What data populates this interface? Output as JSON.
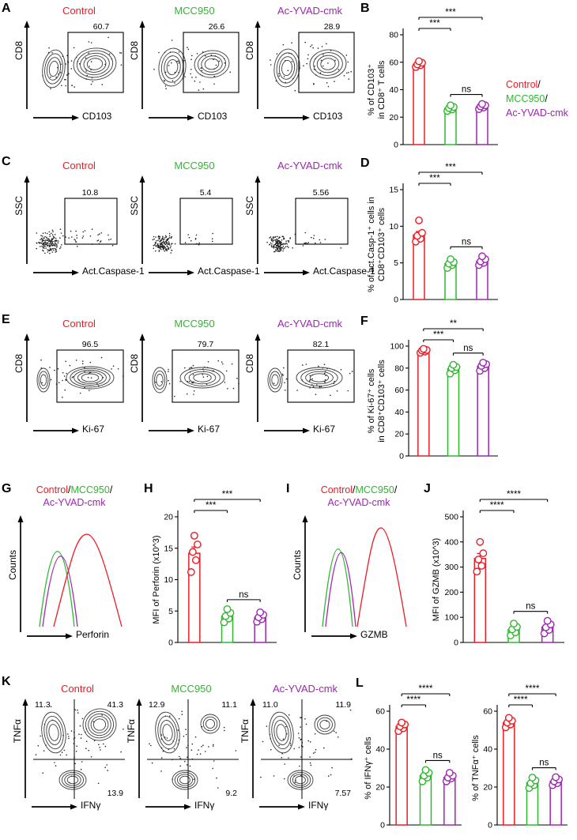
{
  "slash": "/",
  "colors": {
    "control": "#ee1b24",
    "mcc950": "#2eb82e",
    "acyvad": "#9c27b0",
    "contour": "#3c3c3c",
    "axis": "#000000"
  },
  "group_labels": [
    "Control",
    "MCC950",
    "Ac-YVAD-cmk"
  ],
  "panel_a": {
    "label": "A",
    "titles": [
      "Control",
      "MCC950",
      "Ac-YVAD-cmk"
    ],
    "gate_values": [
      "60.7",
      "26.6",
      "28.9"
    ],
    "ylabel": "CD8",
    "xlabel": "CD103"
  },
  "panel_b_legend": [
    "Control",
    "MCC950",
    "Ac-YVAD-cmk"
  ],
  "panel_c": {
    "label": "C",
    "titles": [
      "Control",
      "MCC950",
      "Ac-YVAD-cmk"
    ],
    "gate_values": [
      "10.8",
      "5.4",
      "5.56"
    ],
    "ylabel": "SSC",
    "xlabel": "Act.Caspase-1"
  },
  "panel_e": {
    "label": "E",
    "titles": [
      "Control",
      "MCC950",
      "Ac-YVAD-cmk"
    ],
    "gate_values": [
      "96.5",
      "79.7",
      "82.1"
    ],
    "ylabel": "CD8",
    "xlabel": "Ki-67"
  },
  "panel_g": {
    "label": "G",
    "legend": [
      "Control",
      "MCC950",
      "Ac-YVAD-cmk"
    ],
    "ylabel": "Counts",
    "xlabel": "Perforin"
  },
  "panel_i": {
    "label": "I",
    "legend": [
      "Control",
      "MCC950",
      "Ac-YVAD-cmk"
    ],
    "ylabel": "Counts",
    "xlabel": "GZMB"
  },
  "panel_k": {
    "label": "K",
    "titles": [
      "Control",
      "MCC950",
      "Ac-YVAD-cmk"
    ],
    "quadrants": [
      {
        "tl": "11.3",
        "tr": "41.3",
        "br": "13.9"
      },
      {
        "tl": "12.9",
        "tr": "11.1",
        "br": "9.2"
      },
      {
        "tl": "11.0",
        "tr": "11.9",
        "br": "7.57"
      }
    ],
    "ylabel": "TNFα",
    "xlabel": "IFNγ"
  },
  "chart_data": [
    {
      "panel": "B",
      "type": "bar-scatter",
      "ylabel_lines": [
        "% of CD103⁺",
        "in CD8⁺ T cells"
      ],
      "ylim": [
        0,
        80
      ],
      "yticks": [
        0,
        20,
        40,
        60,
        80
      ],
      "categories": [
        "Control",
        "MCC950",
        "Ac-YVAD-cmk"
      ],
      "series": [
        {
          "name": "Control",
          "color": "control",
          "mean": 58.6,
          "sem": 1.5,
          "points": [
            56.5,
            57.8,
            58.4,
            59.6,
            60.7
          ]
        },
        {
          "name": "MCC950",
          "color": "mcc950",
          "mean": 26.6,
          "sem": 1.2,
          "points": [
            24.5,
            25.6,
            26.6,
            27.4,
            28.6
          ]
        },
        {
          "name": "Ac-YVAD-cmk",
          "color": "acyvad",
          "mean": 27.8,
          "sem": 1.1,
          "points": [
            25.8,
            27.0,
            27.8,
            28.6,
            29.6
          ]
        }
      ],
      "significance": [
        {
          "from": 0,
          "to": 2,
          "label": "***"
        },
        {
          "from": 0,
          "to": 1,
          "label": "***"
        },
        {
          "from": 1,
          "to": 2,
          "label": "ns"
        }
      ]
    },
    {
      "panel": "D",
      "type": "bar-scatter",
      "ylabel_lines": [
        "% of act.Casp-1⁺ cells in",
        "CD8⁺CD103⁺ cells"
      ],
      "ylim": [
        0,
        15
      ],
      "yticks": [
        0,
        5,
        10,
        15
      ],
      "categories": [
        "Control",
        "MCC950",
        "Ac-YVAD-cmk"
      ],
      "series": [
        {
          "name": "Control",
          "color": "control",
          "mean": 8.8,
          "sem": 0.5,
          "points": [
            7.9,
            8.3,
            8.7,
            9.1,
            10.8
          ]
        },
        {
          "name": "MCC950",
          "color": "mcc950",
          "mean": 4.9,
          "sem": 0.2,
          "points": [
            4.3,
            4.7,
            4.9,
            5.1,
            5.5
          ]
        },
        {
          "name": "Ac-YVAD-cmk",
          "color": "acyvad",
          "mean": 5.2,
          "sem": 0.2,
          "points": [
            4.7,
            5.0,
            5.2,
            5.5,
            5.9
          ]
        }
      ],
      "significance": [
        {
          "from": 0,
          "to": 2,
          "label": "***"
        },
        {
          "from": 0,
          "to": 1,
          "label": "***"
        },
        {
          "from": 1,
          "to": 2,
          "label": "ns"
        }
      ]
    },
    {
      "panel": "F",
      "type": "bar-scatter",
      "ylabel_lines": [
        "% of Ki-67⁺ cells",
        "in CD8⁺CD103⁺ cells"
      ],
      "ylim": [
        0,
        100
      ],
      "yticks": [
        0,
        20,
        40,
        60,
        80,
        100
      ],
      "categories": [
        "Control",
        "MCC950",
        "Ac-YVAD-cmk"
      ],
      "series": [
        {
          "name": "Control",
          "color": "control",
          "mean": 95.8,
          "sem": 0.7,
          "points": [
            94.0,
            95.0,
            96.0,
            96.5,
            97.5
          ]
        },
        {
          "name": "MCC950",
          "color": "mcc950",
          "mean": 79.4,
          "sem": 1.4,
          "points": [
            75.0,
            78.0,
            80.0,
            81.0,
            83.0
          ]
        },
        {
          "name": "Ac-YVAD-cmk",
          "color": "acyvad",
          "mean": 81.6,
          "sem": 1.5,
          "points": [
            77.5,
            80.0,
            82.0,
            83.5,
            85.0
          ]
        }
      ],
      "significance": [
        {
          "from": 0,
          "to": 2,
          "label": "**"
        },
        {
          "from": 0,
          "to": 1,
          "label": "***"
        },
        {
          "from": 1,
          "to": 2,
          "label": "ns"
        }
      ]
    },
    {
      "panel": "H",
      "type": "bar-scatter",
      "ylabel_lines": [
        "MFI of Perforin (x10^3)"
      ],
      "ylim": [
        0,
        20
      ],
      "yticks": [
        0,
        5,
        10,
        15,
        20
      ],
      "categories": [
        "Control",
        "MCC950",
        "Ac-YVAD-cmk"
      ],
      "series": [
        {
          "name": "Control",
          "color": "control",
          "mean": 14.2,
          "sem": 1.0,
          "points": [
            11.2,
            13.1,
            14.4,
            15.6,
            17.0
          ]
        },
        {
          "name": "MCC950",
          "color": "mcc950",
          "mean": 4.2,
          "sem": 0.35,
          "points": [
            3.2,
            3.8,
            4.2,
            4.7,
            5.3
          ]
        },
        {
          "name": "Ac-YVAD-cmk",
          "color": "acyvad",
          "mean": 4.0,
          "sem": 0.3,
          "points": [
            3.3,
            3.7,
            4.0,
            4.4,
            4.8
          ]
        }
      ],
      "significance": [
        {
          "from": 0,
          "to": 2,
          "label": "***"
        },
        {
          "from": 0,
          "to": 1,
          "label": "***"
        },
        {
          "from": 1,
          "to": 2,
          "label": "ns"
        }
      ]
    },
    {
      "panel": "J",
      "type": "bar-scatter",
      "ylabel_lines": [
        "MFI of GZMB (x10^3)"
      ],
      "ylim": [
        0,
        500
      ],
      "yticks": [
        0,
        100,
        200,
        300,
        400,
        500
      ],
      "categories": [
        "Control",
        "MCC950",
        "Ac-YVAD-cmk"
      ],
      "series": [
        {
          "name": "Control",
          "color": "control",
          "mean": 334,
          "sem": 20,
          "points": [
            282,
            305,
            330,
            355,
            400
          ]
        },
        {
          "name": "MCC950",
          "color": "mcc950",
          "mean": 51,
          "sem": 8,
          "points": [
            28,
            40,
            52,
            62,
            75
          ]
        },
        {
          "name": "Ac-YVAD-cmk",
          "color": "acyvad",
          "mean": 61,
          "sem": 8,
          "points": [
            36,
            50,
            60,
            72,
            86
          ]
        }
      ],
      "significance": [
        {
          "from": 0,
          "to": 2,
          "label": "****"
        },
        {
          "from": 0,
          "to": 1,
          "label": "****"
        },
        {
          "from": 1,
          "to": 2,
          "label": "ns"
        }
      ]
    },
    {
      "panel": "L",
      "type": "bar-scatter",
      "ylabel_lines": [
        "% of IFNγ⁺ cells"
      ],
      "ylim": [
        0,
        60
      ],
      "yticks": [
        0,
        20,
        40,
        60
      ],
      "categories": [
        "Control",
        "MCC950",
        "Ac-YVAD-cmk"
      ],
      "series": [
        {
          "name": "Control",
          "color": "control",
          "mean": 51.9,
          "sem": 0.8,
          "points": [
            49.5,
            51.0,
            52.0,
            53.0,
            54.0
          ]
        },
        {
          "name": "MCC950",
          "color": "mcc950",
          "mean": 26.1,
          "sem": 1.0,
          "points": [
            23.0,
            25.0,
            26.0,
            27.5,
            29.0
          ]
        },
        {
          "name": "Ac-YVAD-cmk",
          "color": "acyvad",
          "mean": 25.1,
          "sem": 0.8,
          "points": [
            23.0,
            24.5,
            25.0,
            26.0,
            27.5
          ]
        }
      ],
      "significance": [
        {
          "from": 0,
          "to": 2,
          "label": "****"
        },
        {
          "from": 0,
          "to": 1,
          "label": "****"
        },
        {
          "from": 1,
          "to": 2,
          "label": "ns"
        }
      ]
    },
    {
      "panel": "",
      "type": "bar-scatter",
      "ylabel_lines": [
        "% of TNFα⁺ cells"
      ],
      "ylim": [
        0,
        60
      ],
      "yticks": [
        0,
        20,
        40,
        60
      ],
      "categories": [
        "Control",
        "MCC950",
        "Ac-YVAD-cmk"
      ],
      "series": [
        {
          "name": "Control",
          "color": "control",
          "mean": 54.0,
          "sem": 0.9,
          "points": [
            51.5,
            53.0,
            54.0,
            55.0,
            56.5
          ]
        },
        {
          "name": "MCC950",
          "color": "mcc950",
          "mean": 22.2,
          "sem": 1.0,
          "points": [
            19.5,
            21.0,
            22.0,
            23.5,
            25.0
          ]
        },
        {
          "name": "Ac-YVAD-cmk",
          "color": "acyvad",
          "mean": 23.0,
          "sem": 0.8,
          "points": [
            21.0,
            22.0,
            23.0,
            24.0,
            25.2
          ]
        }
      ],
      "significance": [
        {
          "from": 0,
          "to": 2,
          "label": "****"
        },
        {
          "from": 0,
          "to": 1,
          "label": "****"
        },
        {
          "from": 1,
          "to": 2,
          "label": "ns"
        }
      ]
    }
  ]
}
